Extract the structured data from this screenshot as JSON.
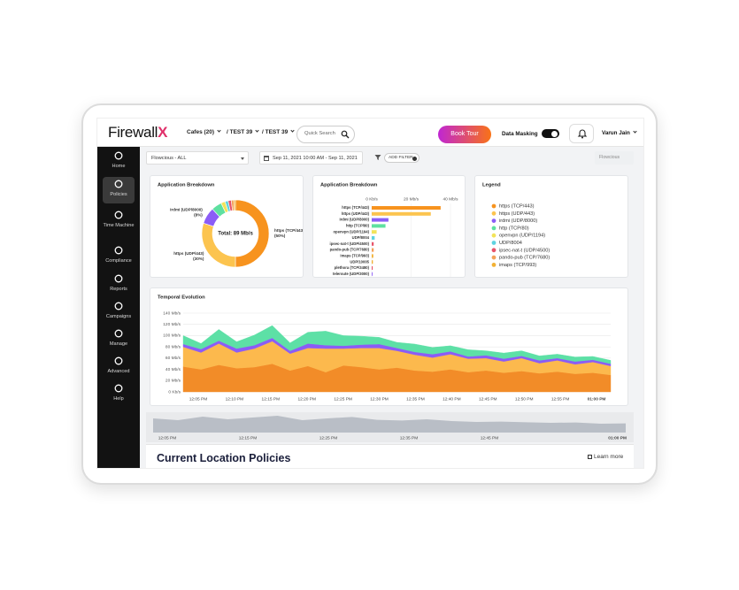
{
  "header": {
    "logo_text": "Firewall",
    "logo_mark": "X",
    "breadcrumbs": [
      "Cafes (20)",
      "/ TEST 39",
      "/ TEST 39"
    ],
    "search_placeholder": "Quick Search",
    "book_tour_button": "Book Tour",
    "data_masking_label": "Data Masking",
    "user_name": "Varun Jain"
  },
  "sidebar": {
    "items": [
      "Home",
      "Policies",
      "Time Machine",
      "Compliance",
      "Reports",
      "Campaigns",
      "Manage",
      "Advanced",
      "Help"
    ]
  },
  "filters": {
    "flow_select": "Flowcious - ALL",
    "date_range": "Sep 11, 2021 10:00 AM - Sep 11, 2021",
    "add_filter": "ADD FILTER",
    "view_select": "Flowcious"
  },
  "donut_chart": {
    "type": "pie",
    "title": "Application Breakdown",
    "center_label": "Total: 89 Mb/s",
    "legend_title": "Legend",
    "categories": [
      "https (TCP/443)",
      "https (UDP/443)",
      "irdmi (UDP/8000)",
      "http (TCP/80)",
      "openvpn (UDP/1194)",
      "UDP/8004",
      "ipsec-nat-t (UDP/4500)",
      "pando-pub (TCP/7680)",
      "imaps (TCP/993)"
    ],
    "colors": [
      "#f7931e",
      "#fcc44f",
      "#8b5cf6",
      "#5ee0a0",
      "#f2e35a",
      "#5fd3e0",
      "#e8546a",
      "#f4a259",
      "#f2b134"
    ],
    "values": [
      50,
      30,
      8,
      5,
      2,
      1.5,
      1.5,
      1.2,
      0.8
    ],
    "value_labels": [
      "(50%)",
      "(30%)",
      "(8%)",
      null,
      null,
      null,
      null,
      null,
      null
    ]
  },
  "bar_chart": {
    "type": "bar",
    "orientation": "horizontal",
    "title": "Application Breakdown",
    "categories": [
      "https (TCP/443)",
      "https (UDP/443)",
      "irdmi (UDP/8000)",
      "http (TCP/80)",
      "openvpn (UDP/1194)",
      "UDP/8004",
      "ipsec-nat-t (UDP/4500)",
      "pando-pub (TCP/7680)",
      "imaps (TCP/993)",
      "UDP/10005",
      "plethora (TCP/3480)",
      "teleroute (UDP/3000)"
    ],
    "colors": [
      "#f7931e",
      "#fcc44f",
      "#8b5cf6",
      "#5ee0a0",
      "#f2e35a",
      "#5fd3e0",
      "#e8546a",
      "#f4a259",
      "#f2b134",
      "#f2b134",
      "#e8546a",
      "#8b5cf6"
    ],
    "values": [
      35,
      30,
      8.5,
      7,
      2.5,
      1.5,
      1,
      1,
      0.8,
      0.6,
      0.5,
      0.4
    ],
    "xlim": [
      0,
      40
    ],
    "xticks": [
      {
        "value": 0,
        "label": "0 Kb/s"
      },
      {
        "value": 20,
        "label": "20 Mb/s"
      },
      {
        "value": 40,
        "label": "40 Mb/s"
      }
    ]
  },
  "area_chart": {
    "type": "area",
    "stacked": true,
    "title": "Temporal Evolution",
    "xtick_labels": [
      "12:05 PM",
      "12:10 PM",
      "12:15 PM",
      "12:20 PM",
      "12:25 PM",
      "12:30 PM",
      "12:35 PM",
      "12:40 PM",
      "12:45 PM",
      "12:50 PM",
      "12:55 PM",
      "01:00 PM"
    ],
    "ylim": [
      0,
      140
    ],
    "yticks": [
      {
        "value": 0,
        "label": "0 Kb/s"
      },
      {
        "value": 20,
        "label": "20 Mb/s"
      },
      {
        "value": 40,
        "label": "40 Mb/s"
      },
      {
        "value": 60,
        "label": "60 Mb/s"
      },
      {
        "value": 80,
        "label": "80 Mb/s"
      },
      {
        "value": 100,
        "label": "100 Mb/s"
      },
      {
        "value": 120,
        "label": "120 Mb/s"
      },
      {
        "value": 140,
        "label": "140 Mb/s"
      }
    ],
    "grid": true,
    "series": [
      {
        "color": "#f28c28",
        "values": [
          45,
          40,
          48,
          42,
          44,
          50,
          38,
          46,
          35,
          47,
          44,
          40,
          43,
          38,
          36,
          40,
          35,
          38,
          34,
          37,
          33,
          36,
          32,
          34,
          30
        ]
      },
      {
        "color": "#fcb94d",
        "values": [
          35,
          30,
          38,
          28,
          33,
          40,
          30,
          32,
          42,
          30,
          34,
          38,
          30,
          28,
          25,
          27,
          24,
          22,
          20,
          23,
          18,
          20,
          17,
          19,
          16
        ]
      },
      {
        "color": "#8b5cf6",
        "values": [
          5,
          6,
          5,
          7,
          6,
          6,
          5,
          8,
          6,
          5,
          6,
          7,
          5,
          5,
          6,
          5,
          4,
          5,
          5,
          4,
          5,
          4,
          5,
          4,
          4
        ]
      },
      {
        "color": "#5de0a6",
        "values": [
          15,
          10,
          20,
          12,
          18,
          22,
          14,
          20,
          25,
          18,
          15,
          12,
          10,
          14,
          12,
          10,
          12,
          8,
          10,
          9,
          8,
          7,
          8,
          6,
          6
        ]
      }
    ]
  },
  "overview_chart": {
    "type": "area",
    "color": "#b9bec6",
    "ylim": [
      0,
      100
    ],
    "values": [
      80,
      70,
      90,
      75,
      85,
      95,
      70,
      80,
      88,
      72,
      68,
      75,
      65,
      60,
      62,
      58,
      55,
      57,
      50,
      52
    ],
    "xtick_labels": [
      "12:05 PM",
      "12:15 PM",
      "12:25 PM",
      "12:35 PM",
      "12:45 PM",
      "01:00 PM"
    ]
  },
  "policies": {
    "title": "Current Location Policies",
    "link": "Learn more"
  }
}
